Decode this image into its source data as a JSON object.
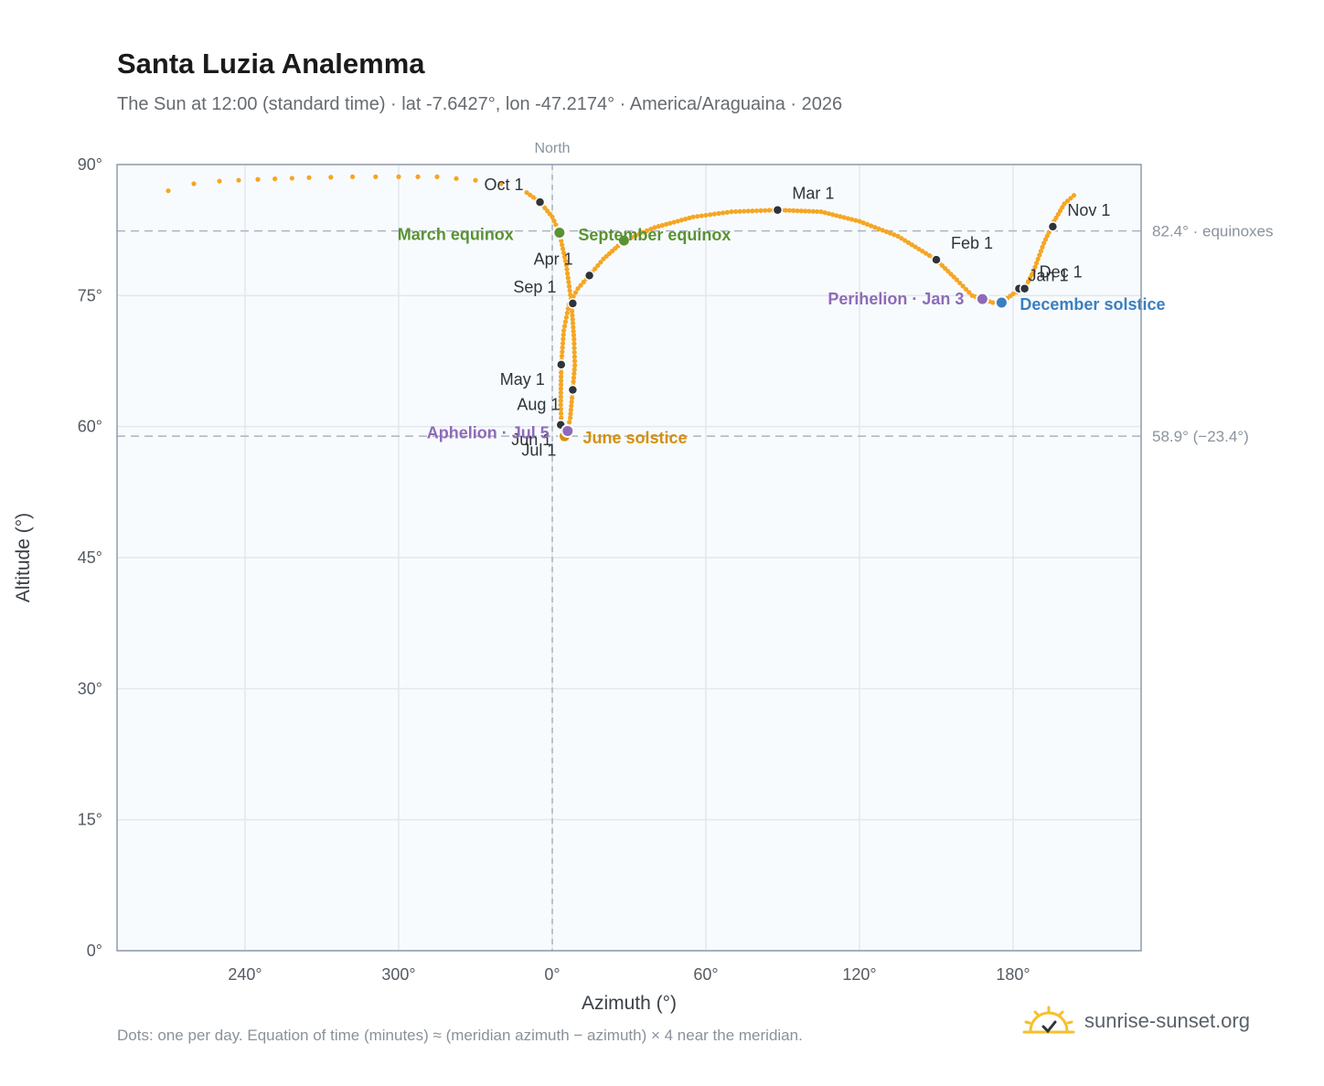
{
  "title": "Santa Luzia Analemma",
  "subtitle": "The Sun at 12:00 (standard time) · lat -7.6427°, lon -47.2174° · America/Araguaina · 2026",
  "footnote": "Dots: one per day. Equation of time (minutes) ≈ (meridian azimuth − azimuth) × 4 near the meridian.",
  "brand": {
    "text": "sunrise-sunset.org",
    "icon": "sun-logo-icon"
  },
  "colors": {
    "path": "#f5a623",
    "month_marker": "#2f343a",
    "equinox": "#5a9234",
    "june_solstice": "#d4900f",
    "december_solstice": "#3a7fc0",
    "apsis": "#8e6bb8",
    "plot_bg": "#f8fbfd",
    "grid": "#e3e8ee",
    "axis": "#8f9bab",
    "ref_line": "#aab4be"
  },
  "chart_data": {
    "type": "scatter",
    "title": "Santa Luzia Analemma",
    "xlabel": "Azimuth (°)",
    "ylabel": "Altitude (°)",
    "x_axis": {
      "unit": "degrees azimuth, unwrapped (north = 0°)",
      "range": [
        -170,
        230
      ],
      "ticks": [
        "240°",
        "300°",
        "0°",
        "60°",
        "120°",
        "180°"
      ],
      "tick_values": [
        -120,
        -60,
        0,
        60,
        120,
        180
      ]
    },
    "y_axis": {
      "range": [
        0,
        90
      ],
      "ticks": [
        "0°",
        "15°",
        "30°",
        "45°",
        "60°",
        "75°",
        "90°"
      ],
      "tick_values": [
        0,
        15,
        30,
        45,
        60,
        75,
        90
      ]
    },
    "grid": true,
    "north_line": {
      "x": 0,
      "label": "North"
    },
    "reference_lines": [
      {
        "y": 82.4,
        "label": "82.4° · equinoxes"
      },
      {
        "y": 58.9,
        "label": "58.9° (−23.4°)"
      }
    ],
    "month_markers": [
      {
        "label": "Jan 1",
        "az": 182.3,
        "alt": 75.8
      },
      {
        "label": "Feb 1",
        "az": 150.0,
        "alt": 79.1
      },
      {
        "label": "Mar 1",
        "az": 88.0,
        "alt": 84.8
      },
      {
        "label": "Apr 1",
        "az": 14.5,
        "alt": 77.3
      },
      {
        "label": "May 1",
        "az": 3.5,
        "alt": 67.1
      },
      {
        "label": "Jun 1",
        "az": 3.3,
        "alt": 60.2
      },
      {
        "label": "Jul 1",
        "az": 8.0,
        "alt": 64.2
      },
      {
        "label": "Aug 1",
        "az": 8.0,
        "alt": 64.2
      },
      {
        "label": "Sep 1",
        "az": 8.0,
        "alt": 74.1
      },
      {
        "label": "Oct 1",
        "az": -4.8,
        "alt": 85.7
      },
      {
        "label": "Nov 1",
        "az": 195.5,
        "alt": 82.9
      },
      {
        "label": "Dec 1",
        "az": 184.5,
        "alt": 75.8
      }
    ],
    "events": [
      {
        "label": "March equinox",
        "az": 2.8,
        "alt": 82.2,
        "type": "equinox"
      },
      {
        "label": "September equinox",
        "az": 28.0,
        "alt": 81.3,
        "type": "equinox"
      },
      {
        "label": "June solstice",
        "az": 4.8,
        "alt": 58.9,
        "type": "june_solstice"
      },
      {
        "label": "December solstice",
        "az": 175.5,
        "alt": 74.2,
        "type": "december_solstice"
      },
      {
        "label": "Perihelion · Jan 3",
        "az": 168.0,
        "alt": 74.6,
        "type": "apsis"
      },
      {
        "label": "Aphelion · Jul 5",
        "az": 6.0,
        "alt": 59.5,
        "type": "apsis"
      }
    ],
    "path_control_points": [
      [
        164.0,
        75.0
      ],
      [
        168.0,
        74.6
      ],
      [
        172.0,
        74.2
      ],
      [
        175.5,
        74.2
      ],
      [
        180.0,
        75.2
      ],
      [
        184.5,
        75.8
      ],
      [
        188.0,
        77.8
      ],
      [
        192.0,
        81.0
      ],
      [
        196.0,
        83.5
      ],
      [
        200.0,
        85.5
      ],
      [
        205.0,
        86.8
      ],
      [
        -150.0,
        87.0
      ],
      [
        -140.0,
        87.8
      ],
      [
        -130.0,
        88.1
      ],
      [
        -115.0,
        88.3
      ],
      [
        -95.0,
        88.5
      ],
      [
        -78.0,
        88.6
      ],
      [
        -60.0,
        88.6
      ],
      [
        -45.0,
        88.6
      ],
      [
        -30.0,
        88.2
      ],
      [
        -20.0,
        87.8
      ],
      [
        -10.0,
        86.8
      ],
      [
        -4.8,
        85.7
      ],
      [
        0.0,
        84.0
      ],
      [
        2.8,
        82.2
      ],
      [
        5.5,
        78.5
      ],
      [
        7.5,
        74.1
      ],
      [
        8.5,
        70.0
      ],
      [
        8.8,
        67.0
      ],
      [
        8.0,
        64.2
      ],
      [
        7.0,
        61.0
      ],
      [
        6.0,
        59.5
      ],
      [
        4.8,
        58.9
      ],
      [
        3.6,
        60.0
      ],
      [
        3.3,
        62.5
      ],
      [
        3.5,
        67.1
      ],
      [
        4.5,
        71.0
      ],
      [
        6.5,
        74.0
      ],
      [
        10.0,
        75.8
      ],
      [
        14.5,
        77.3
      ],
      [
        20.0,
        79.2
      ],
      [
        28.0,
        81.3
      ],
      [
        40.0,
        82.8
      ],
      [
        55.0,
        84.0
      ],
      [
        70.0,
        84.6
      ],
      [
        88.0,
        84.8
      ],
      [
        105.0,
        84.6
      ],
      [
        120.0,
        83.5
      ],
      [
        135.0,
        81.8
      ],
      [
        150.0,
        79.1
      ],
      [
        158.0,
        76.8
      ],
      [
        164.0,
        75.0
      ]
    ]
  }
}
